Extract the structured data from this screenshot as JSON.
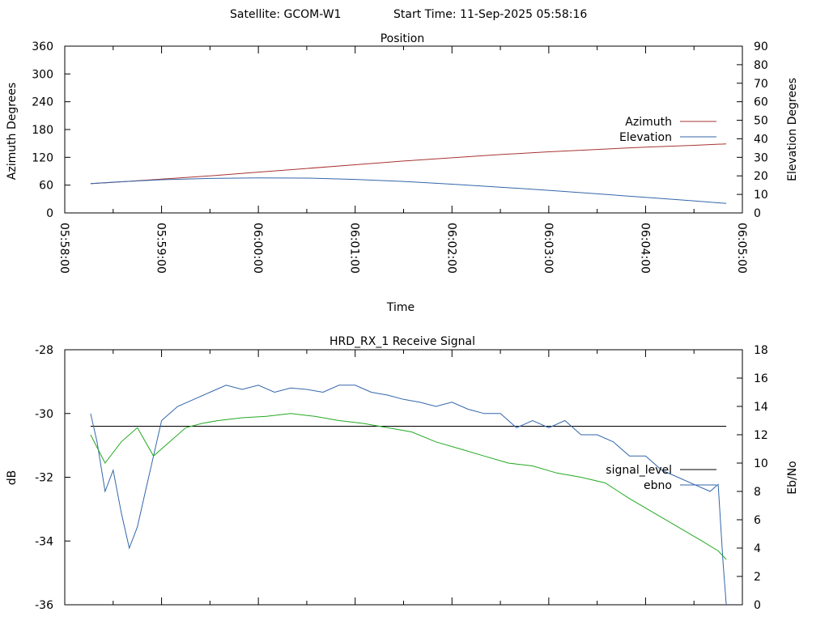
{
  "header": {
    "satellite_label": "Satellite: GCOM-W1",
    "start_time_label": "Start Time: 11-Sep-2025 05:58:16"
  },
  "chart_data": [
    {
      "type": "line",
      "title": "Position",
      "xlabel": "Time",
      "ylabel": "Azimuth Degrees",
      "y2label": "Elevation Degrees",
      "x_ticks": [
        "05:58:00",
        "05:59:00",
        "06:00:00",
        "06:01:00",
        "06:02:00",
        "06:03:00",
        "06:04:00",
        "06:05:00"
      ],
      "x_range": [
        "05:58:00",
        "06:05:00"
      ],
      "ylim": [
        0,
        360
      ],
      "y_ticks": [
        0,
        60,
        120,
        180,
        240,
        300,
        360
      ],
      "y2lim": [
        0,
        90
      ],
      "y2_ticks": [
        0,
        10,
        20,
        30,
        40,
        50,
        60,
        70,
        80,
        90
      ],
      "grid": false,
      "legend_position": "right",
      "series": [
        {
          "name": "Azimuth",
          "axis": "y",
          "color": "#aa3333",
          "x": [
            "05:58:16",
            "05:58:30",
            "05:59:00",
            "05:59:30",
            "06:00:00",
            "06:00:30",
            "06:01:00",
            "06:01:30",
            "06:02:00",
            "06:02:30",
            "06:03:00",
            "06:03:30",
            "06:04:00",
            "06:04:30",
            "06:04:50"
          ],
          "values": [
            63,
            66,
            73,
            80,
            88,
            96,
            104,
            112,
            119,
            126,
            132,
            137,
            142,
            146,
            149
          ]
        },
        {
          "name": "Elevation",
          "axis": "y2",
          "color": "#3366aa",
          "x": [
            "05:58:16",
            "05:58:30",
            "05:59:00",
            "05:59:30",
            "06:00:00",
            "06:00:30",
            "06:01:00",
            "06:01:30",
            "06:02:00",
            "06:02:30",
            "06:03:00",
            "06:03:30",
            "06:04:00",
            "06:04:30",
            "06:04:50"
          ],
          "values": [
            15.8,
            16.6,
            17.9,
            18.6,
            18.9,
            18.8,
            18.1,
            17.0,
            15.5,
            13.9,
            12.2,
            10.3,
            8.4,
            6.5,
            5.1
          ]
        }
      ]
    },
    {
      "type": "line",
      "title": "HRD_RX_1 Receive Signal",
      "ylabel": "dB",
      "y2label": "Eb/No",
      "x_range": [
        "05:58:00",
        "06:05:00"
      ],
      "ylim": [
        -36,
        -28
      ],
      "y_ticks": [
        -36,
        -34,
        -32,
        -30,
        -28
      ],
      "y2lim": [
        0,
        18
      ],
      "y2_ticks": [
        0,
        2,
        4,
        6,
        8,
        10,
        12,
        14,
        16,
        18
      ],
      "grid": false,
      "legend_position": "right",
      "series": [
        {
          "name": "signal_level",
          "axis": "y",
          "color": "#000000",
          "x": [
            "05:58:16",
            "06:04:50"
          ],
          "values": [
            -30.4,
            -30.4
          ]
        },
        {
          "name": "ebno",
          "axis": "y2",
          "color": "#3366aa",
          "x": [
            "05:58:16",
            "05:58:20",
            "05:58:25",
            "05:58:30",
            "05:58:35",
            "05:58:40",
            "05:58:45",
            "05:58:50",
            "05:58:55",
            "05:59:00",
            "05:59:05",
            "05:59:10",
            "05:59:20",
            "05:59:30",
            "05:59:40",
            "05:59:50",
            "06:00:00",
            "06:00:10",
            "06:00:20",
            "06:00:30",
            "06:00:40",
            "06:00:50",
            "06:01:00",
            "06:01:10",
            "06:01:20",
            "06:01:30",
            "06:01:40",
            "06:01:50",
            "06:02:00",
            "06:02:10",
            "06:02:20",
            "06:02:30",
            "06:02:40",
            "06:02:50",
            "06:03:00",
            "06:03:10",
            "06:03:20",
            "06:03:30",
            "06:03:40",
            "06:03:50",
            "06:04:00",
            "06:04:10",
            "06:04:20",
            "06:04:30",
            "06:04:40",
            "06:04:45",
            "06:04:48",
            "06:04:50"
          ],
          "values": [
            13.5,
            11.5,
            8.0,
            9.5,
            6.5,
            4.0,
            5.5,
            8.0,
            10.5,
            13.0,
            13.5,
            14.0,
            14.5,
            15.0,
            15.5,
            15.2,
            15.5,
            15.0,
            15.3,
            15.2,
            15.0,
            15.5,
            15.5,
            15.0,
            14.8,
            14.5,
            14.3,
            14.0,
            14.3,
            13.8,
            13.5,
            13.5,
            12.5,
            13.0,
            12.5,
            13.0,
            12.0,
            12.0,
            11.5,
            10.5,
            10.5,
            9.5,
            9.0,
            8.5,
            8.0,
            8.5,
            3.0,
            0.0
          ]
        },
        {
          "name": "",
          "axis": "y2",
          "color": "#22aa22",
          "x": [
            "05:58:16",
            "05:58:25",
            "05:58:35",
            "05:58:45",
            "05:58:55",
            "05:59:05",
            "05:59:15",
            "05:59:25",
            "05:59:35",
            "05:59:50",
            "06:00:05",
            "06:00:20",
            "06:00:35",
            "06:00:50",
            "06:01:05",
            "06:01:20",
            "06:01:35",
            "06:01:50",
            "06:02:05",
            "06:02:20",
            "06:02:35",
            "06:02:50",
            "06:03:05",
            "06:03:20",
            "06:03:35",
            "06:03:50",
            "06:04:05",
            "06:04:20",
            "06:04:35",
            "06:04:45",
            "06:04:50"
          ],
          "values": [
            12.0,
            10.0,
            11.5,
            12.5,
            10.5,
            11.5,
            12.5,
            12.8,
            13.0,
            13.2,
            13.3,
            13.5,
            13.3,
            13.0,
            12.8,
            12.5,
            12.2,
            11.5,
            11.0,
            10.5,
            10.0,
            9.8,
            9.3,
            9.0,
            8.6,
            7.5,
            6.5,
            5.5,
            4.5,
            3.8,
            3.2
          ]
        }
      ]
    }
  ]
}
